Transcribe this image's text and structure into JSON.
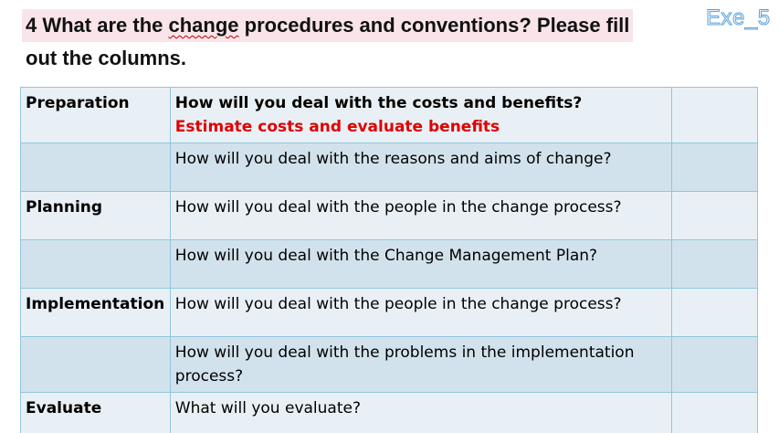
{
  "header": {
    "title_line1": "4 What are the change procedures and conventions? Please fill",
    "title_word_before": "4 What are the ",
    "title_word_flagged": "change",
    "title_word_after": " procedures and conventions? Please fill",
    "title_line2": "out the columns.",
    "exercise_tag": "Exe_5"
  },
  "table": {
    "rows": [
      {
        "phase": "Preparation",
        "question": "How will you deal with the costs and benefits?",
        "answer_hint": "Estimate costs and evaluate benefits",
        "notes": ""
      },
      {
        "phase": "",
        "question": "How will you deal with the reasons and aims of change?",
        "notes": ""
      },
      {
        "phase": "Planning",
        "question": "How will you deal with the people in the change process?",
        "notes": ""
      },
      {
        "phase": "",
        "question": "How will you deal with the Change Management Plan?",
        "notes": ""
      },
      {
        "phase": "Implementation",
        "question": "How will you deal with the people in the change process?",
        "notes": ""
      },
      {
        "phase": "",
        "question": "How will you deal with the problems in the implementation process?",
        "notes": ""
      },
      {
        "phase": "Evaluate",
        "question": "What will you evaluate?",
        "notes": ""
      }
    ]
  }
}
